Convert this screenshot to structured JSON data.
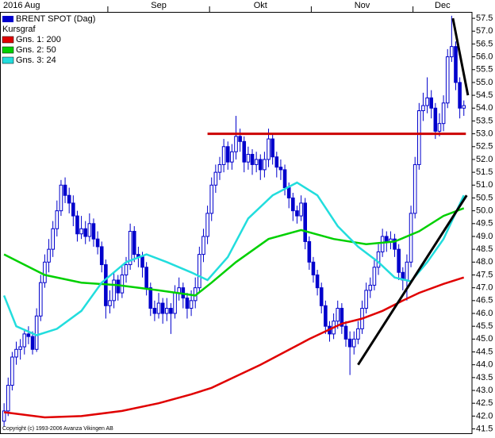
{
  "chart_data": {
    "type": "candlestick",
    "title": "BRENT SPOT (Dag)",
    "subtitle": "Kursgraf",
    "color": "#0000cc",
    "legend": "upper left",
    "copyright": "Copyright (c) 1993-2006 Avanza Vikingen AB",
    "months": [
      {
        "label": "2016 Aug",
        "start": 0
      },
      {
        "label": "Sep",
        "start": 26
      },
      {
        "label": "Okt",
        "start": 51
      },
      {
        "label": "Nov",
        "start": 76
      },
      {
        "label": "Dec",
        "start": 101
      }
    ],
    "xlim": [
      -1,
      115
    ],
    "ylim": [
      41.3,
      57.75
    ],
    "yticks": [
      41.5,
      {
        "value": 42,
        "label": "42.0"
      },
      42.5,
      {
        "value": 43,
        "label": "43.0"
      },
      43.5,
      {
        "value": 44,
        "label": "44.0"
      },
      44.5,
      {
        "value": 45,
        "label": "45.0"
      },
      45.5,
      {
        "value": 46,
        "label": "46.0"
      },
      46.5,
      {
        "value": 47,
        "label": "47.0"
      },
      47.5,
      {
        "value": 48,
        "label": "48.0"
      },
      48.5,
      {
        "value": 49,
        "label": "49.0"
      },
      49.5,
      {
        "value": 50,
        "label": "50.0"
      },
      50.5,
      {
        "value": 51,
        "label": "51.0"
      },
      51.5,
      {
        "value": 52,
        "label": "52.0"
      },
      52.5,
      {
        "value": 53,
        "label": "53.0"
      },
      53.5,
      {
        "value": 54,
        "label": "54.0"
      },
      54.5,
      {
        "value": 55,
        "label": "55.0"
      },
      55.5,
      {
        "value": 56,
        "label": "56.0"
      },
      56.5,
      {
        "value": 57,
        "label": "57.0"
      },
      57.5
    ],
    "ohlc": [
      [
        41.8,
        42.5,
        41.6,
        42.2
      ],
      [
        42.2,
        43.5,
        42.0,
        43.2
      ],
      [
        43.2,
        44.5,
        43.0,
        44.3
      ],
      [
        44.3,
        44.9,
        44.0,
        44.6
      ],
      [
        44.6,
        45.0,
        44.2,
        44.7
      ],
      [
        44.7,
        45.4,
        44.4,
        45.2
      ],
      [
        45.2,
        45.5,
        44.8,
        45.1
      ],
      [
        45.1,
        45.3,
        44.4,
        44.6
      ],
      [
        44.6,
        46.2,
        44.5,
        45.9
      ],
      [
        45.9,
        47.5,
        45.7,
        47.2
      ],
      [
        47.2,
        48.3,
        47.0,
        48.0
      ],
      [
        48.0,
        48.9,
        47.6,
        48.5
      ],
      [
        48.5,
        49.6,
        48.2,
        49.3
      ],
      [
        49.3,
        50.4,
        49.0,
        50.0
      ],
      [
        50.0,
        51.2,
        49.8,
        51.0
      ],
      [
        51.0,
        51.3,
        50.3,
        50.6
      ],
      [
        50.6,
        50.9,
        49.9,
        50.3
      ],
      [
        50.3,
        50.6,
        49.4,
        49.8
      ],
      [
        49.8,
        50.0,
        48.8,
        49.1
      ],
      [
        49.1,
        49.8,
        48.9,
        49.3
      ],
      [
        49.3,
        49.6,
        48.7,
        49.0
      ],
      [
        49.0,
        49.9,
        48.8,
        49.5
      ],
      [
        49.5,
        49.7,
        48.6,
        48.9
      ],
      [
        48.9,
        49.2,
        48.3,
        48.6
      ],
      [
        48.6,
        48.8,
        47.6,
        47.9
      ],
      [
        47.9,
        48.1,
        45.8,
        46.3
      ],
      [
        46.3,
        46.9,
        46.0,
        46.5
      ],
      [
        46.5,
        47.6,
        46.2,
        47.3
      ],
      [
        47.3,
        47.5,
        46.5,
        46.8
      ],
      [
        46.8,
        47.9,
        46.6,
        47.5
      ],
      [
        47.5,
        48.2,
        47.2,
        47.9
      ],
      [
        47.9,
        49.5,
        47.7,
        49.2
      ],
      [
        49.2,
        49.4,
        48.0,
        48.3
      ],
      [
        48.3,
        48.6,
        47.8,
        48.2
      ],
      [
        48.2,
        48.4,
        47.4,
        47.8
      ],
      [
        47.8,
        48.0,
        46.7,
        47.0
      ],
      [
        47.0,
        47.2,
        45.9,
        46.2
      ],
      [
        46.2,
        46.5,
        45.7,
        46.0
      ],
      [
        46.0,
        46.8,
        45.8,
        46.4
      ],
      [
        46.4,
        46.6,
        45.6,
        46.0
      ],
      [
        46.0,
        46.6,
        45.7,
        46.2
      ],
      [
        46.2,
        46.4,
        45.2,
        46.0
      ],
      [
        46.0,
        47.1,
        45.8,
        46.8
      ],
      [
        46.8,
        47.4,
        46.5,
        47.0
      ],
      [
        47.0,
        47.2,
        46.2,
        46.6
      ],
      [
        46.6,
        46.8,
        45.8,
        46.2
      ],
      [
        46.2,
        46.9,
        45.9,
        46.5
      ],
      [
        46.5,
        47.4,
        46.2,
        47.0
      ],
      [
        47.0,
        48.6,
        46.8,
        48.3
      ],
      [
        48.3,
        49.3,
        48.0,
        49.0
      ],
      [
        49.0,
        50.2,
        48.7,
        49.9
      ],
      [
        49.9,
        51.3,
        49.6,
        51.0
      ],
      [
        51.0,
        51.8,
        50.7,
        51.5
      ],
      [
        51.5,
        52.1,
        51.2,
        51.8
      ],
      [
        51.8,
        52.8,
        51.5,
        52.5
      ],
      [
        52.5,
        52.7,
        51.6,
        51.9
      ],
      [
        51.9,
        52.6,
        51.6,
        52.3
      ],
      [
        52.3,
        53.7,
        52.0,
        52.9
      ],
      [
        52.9,
        53.2,
        52.3,
        52.7
      ],
      [
        52.7,
        52.9,
        51.5,
        51.9
      ],
      [
        51.9,
        52.5,
        51.6,
        52.2
      ],
      [
        52.2,
        52.4,
        51.4,
        51.8
      ],
      [
        51.8,
        52.3,
        51.5,
        52.0
      ],
      [
        52.0,
        52.2,
        51.2,
        51.6
      ],
      [
        51.6,
        52.3,
        51.3,
        52.0
      ],
      [
        52.0,
        53.2,
        51.7,
        52.8
      ],
      [
        52.8,
        53.0,
        51.8,
        52.1
      ],
      [
        52.1,
        52.3,
        51.3,
        51.7
      ],
      [
        51.7,
        52.0,
        51.2,
        51.6
      ],
      [
        51.6,
        51.8,
        50.6,
        50.9
      ],
      [
        50.9,
        51.1,
        50.1,
        50.5
      ],
      [
        50.5,
        50.7,
        49.6,
        50.0
      ],
      [
        50.0,
        50.2,
        49.5,
        49.8
      ],
      [
        49.8,
        50.6,
        49.6,
        50.3
      ],
      [
        50.3,
        50.5,
        48.5,
        48.8
      ],
      [
        48.8,
        49.0,
        47.7,
        48.0
      ],
      [
        48.0,
        48.2,
        47.2,
        47.5
      ],
      [
        47.5,
        47.7,
        46.7,
        47.0
      ],
      [
        47.0,
        47.2,
        46.0,
        46.3
      ],
      [
        46.3,
        46.5,
        45.2,
        45.5
      ],
      [
        45.5,
        45.7,
        44.9,
        45.2
      ],
      [
        45.2,
        46.0,
        45.0,
        45.7
      ],
      [
        45.7,
        46.5,
        45.4,
        46.2
      ],
      [
        46.2,
        46.4,
        45.2,
        45.5
      ],
      [
        45.5,
        45.7,
        44.7,
        45.0
      ],
      [
        45.0,
        45.3,
        43.6,
        44.7
      ],
      [
        44.7,
        45.3,
        44.4,
        45.0
      ],
      [
        45.0,
        45.7,
        44.8,
        45.4
      ],
      [
        45.4,
        46.5,
        45.2,
        46.2
      ],
      [
        46.2,
        47.2,
        46.0,
        46.9
      ],
      [
        46.9,
        47.4,
        46.6,
        47.1
      ],
      [
        47.1,
        48.1,
        46.9,
        47.8
      ],
      [
        47.8,
        48.7,
        47.5,
        48.4
      ],
      [
        48.4,
        49.3,
        48.2,
        49.0
      ],
      [
        49.0,
        49.2,
        48.4,
        48.8
      ],
      [
        48.8,
        49.2,
        48.5,
        48.9
      ],
      [
        48.9,
        49.1,
        48.2,
        48.5
      ],
      [
        48.5,
        48.7,
        47.3,
        47.6
      ],
      [
        47.6,
        47.8,
        46.9,
        47.3
      ],
      [
        47.3,
        48.3,
        46.5,
        48.0
      ],
      [
        48.0,
        50.2,
        47.8,
        49.9
      ],
      [
        49.9,
        52.1,
        49.7,
        51.8
      ],
      [
        51.8,
        54.2,
        51.6,
        53.9
      ],
      [
        53.9,
        54.6,
        53.5,
        54.1
      ],
      [
        54.1,
        55.2,
        53.8,
        54.4
      ],
      [
        54.4,
        54.7,
        53.6,
        54.0
      ],
      [
        54.0,
        54.2,
        52.8,
        53.1
      ],
      [
        53.1,
        53.8,
        52.9,
        53.4
      ],
      [
        53.4,
        54.5,
        53.1,
        54.2
      ],
      [
        54.2,
        56.3,
        54.0,
        56.0
      ],
      [
        56.0,
        57.6,
        55.8,
        56.4
      ],
      [
        56.4,
        56.6,
        54.7,
        55.0
      ],
      [
        55.0,
        55.2,
        53.6,
        54.0
      ],
      [
        54.0,
        54.3,
        53.7,
        54.1
      ]
    ],
    "series": [
      {
        "name": "Gns. 1: 200",
        "color": "#e00000",
        "x": [
          0,
          10,
          19,
          29,
          38,
          46,
          51,
          57,
          63,
          69,
          75,
          83,
          88,
          93,
          98,
          102,
          108,
          113
        ],
        "values": [
          42.15,
          41.95,
          42.0,
          42.2,
          42.5,
          42.85,
          43.1,
          43.55,
          44.0,
          44.5,
          45.0,
          45.6,
          45.8,
          46.1,
          46.5,
          46.8,
          47.15,
          47.4
        ]
      },
      {
        "name": "Gns. 2: 50",
        "color": "#00d000",
        "x": [
          0,
          5,
          10,
          19,
          28,
          38,
          47,
          51,
          57,
          65,
          73,
          81,
          89,
          96,
          102,
          108,
          113
        ],
        "values": [
          48.3,
          47.9,
          47.5,
          47.2,
          47.1,
          46.9,
          46.7,
          47.2,
          48.0,
          48.9,
          49.25,
          48.9,
          48.7,
          48.8,
          49.2,
          49.8,
          50.1
        ]
      },
      {
        "name": "Gns. 3: 24",
        "color": "#22dddd",
        "x": [
          0,
          3,
          8,
          13,
          19,
          24,
          30,
          35,
          40,
          46,
          50,
          55,
          60,
          66,
          72,
          77,
          82,
          87,
          92,
          96,
          100,
          104,
          108,
          113
        ],
        "values": [
          46.7,
          45.5,
          45.15,
          45.4,
          46.1,
          47.2,
          48.0,
          48.3,
          48.0,
          47.6,
          47.3,
          48.2,
          49.7,
          50.6,
          51.1,
          50.6,
          49.4,
          48.6,
          48.0,
          47.4,
          47.25,
          48.0,
          48.9,
          50.6
        ]
      }
    ],
    "trendlines": [
      {
        "color": "#cc0000",
        "x": [
          50,
          113.5
        ],
        "values": [
          53,
          53
        ]
      },
      {
        "color": "#000000",
        "x": [
          87,
          113.7
        ],
        "values": [
          44.0,
          50.6
        ]
      },
      {
        "color": "#000000",
        "x": [
          110.3,
          114
        ],
        "values": [
          57.5,
          54.5
        ]
      }
    ]
  }
}
